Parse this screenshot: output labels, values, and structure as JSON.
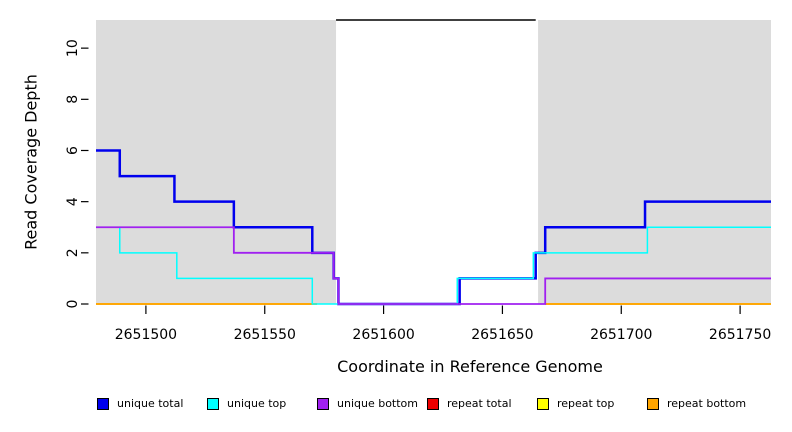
{
  "chart_data": {
    "type": "line",
    "subtype": "step-coverage",
    "title": "",
    "xlabel": "Coordinate in Reference Genome",
    "ylabel": "Read Coverage Depth",
    "xlim": [
      2651479,
      2651763
    ],
    "ylim": [
      0,
      11.1
    ],
    "x_ticks": [
      2651500,
      2651550,
      2651600,
      2651650,
      2651700,
      2651750
    ],
    "y_ticks": [
      0,
      2,
      4,
      6,
      8,
      10
    ],
    "grid": false,
    "legend_position": "bottom",
    "panel_color": "#DCDCDC",
    "background_regions": [
      {
        "name": "left-unique-region",
        "x0": 2651479,
        "x1": 2651580
      },
      {
        "name": "right-unique-region",
        "x0": 2651665,
        "x1": 2651763
      }
    ],
    "repeat_region_bar": {
      "x0": 2651580,
      "x1": 2651664,
      "y": 11.1,
      "color": "#000000"
    },
    "series": [
      {
        "name": "unique total",
        "color": "#0000EE",
        "width": 2.5,
        "z": 3,
        "segments": [
          [
            [
              2651479,
              6
            ],
            [
              2651489,
              5
            ],
            [
              2651512,
              4
            ],
            [
              2651537,
              3
            ],
            [
              2651570,
              2
            ],
            [
              2651579,
              1
            ],
            [
              2651581,
              0
            ],
            [
              2651632,
              1
            ],
            [
              2651664,
              2
            ],
            [
              2651668,
              3
            ],
            [
              2651710,
              4
            ],
            [
              2651763,
              4
            ]
          ]
        ]
      },
      {
        "name": "unique top",
        "color": "#00FFFF",
        "width": 1.5,
        "z": 4,
        "segments": [
          [
            [
              2651479,
              3
            ],
            [
              2651489,
              2
            ],
            [
              2651513,
              1
            ],
            [
              2651570,
              0
            ],
            [
              2651631,
              1
            ],
            [
              2651663,
              2
            ],
            [
              2651711,
              3
            ],
            [
              2651763,
              3
            ]
          ]
        ]
      },
      {
        "name": "unique bottom",
        "color": "#A020F0",
        "width": 1.8,
        "z": 5,
        "segments": [
          [
            [
              2651479,
              3
            ],
            [
              2651537,
              2
            ],
            [
              2651579,
              1
            ],
            [
              2651581,
              0
            ],
            [
              2651668,
              1
            ],
            [
              2651763,
              1
            ]
          ]
        ]
      },
      {
        "name": "repeat total",
        "color": "#EE0000",
        "width": 1.5,
        "z": 0,
        "segments": [
          [
            [
              2651479,
              0
            ],
            [
              2651572,
              0
            ]
          ],
          [
            [
              2651668,
              0
            ],
            [
              2651763,
              0
            ]
          ]
        ]
      },
      {
        "name": "repeat top",
        "color": "#FFFF00",
        "width": 1.5,
        "z": 1,
        "segments": [
          [
            [
              2651479,
              0
            ],
            [
              2651572,
              0
            ]
          ],
          [
            [
              2651668,
              0
            ],
            [
              2651763,
              0
            ]
          ]
        ]
      },
      {
        "name": "repeat bottom",
        "color": "#FFA500",
        "width": 1.8,
        "z": 2,
        "segments": [
          [
            [
              2651479,
              0
            ],
            [
              2651572,
              0
            ]
          ],
          [
            [
              2651668,
              0
            ],
            [
              2651763,
              0
            ]
          ]
        ]
      }
    ],
    "legend": [
      {
        "label": "unique total",
        "color": "#0000EE"
      },
      {
        "label": "unique top",
        "color": "#00FFFF"
      },
      {
        "label": "unique bottom",
        "color": "#A020F0"
      },
      {
        "label": "repeat total",
        "color": "#EE0000"
      },
      {
        "label": "repeat top",
        "color": "#FFFF00"
      },
      {
        "label": "repeat bottom",
        "color": "#FFA500"
      }
    ]
  }
}
